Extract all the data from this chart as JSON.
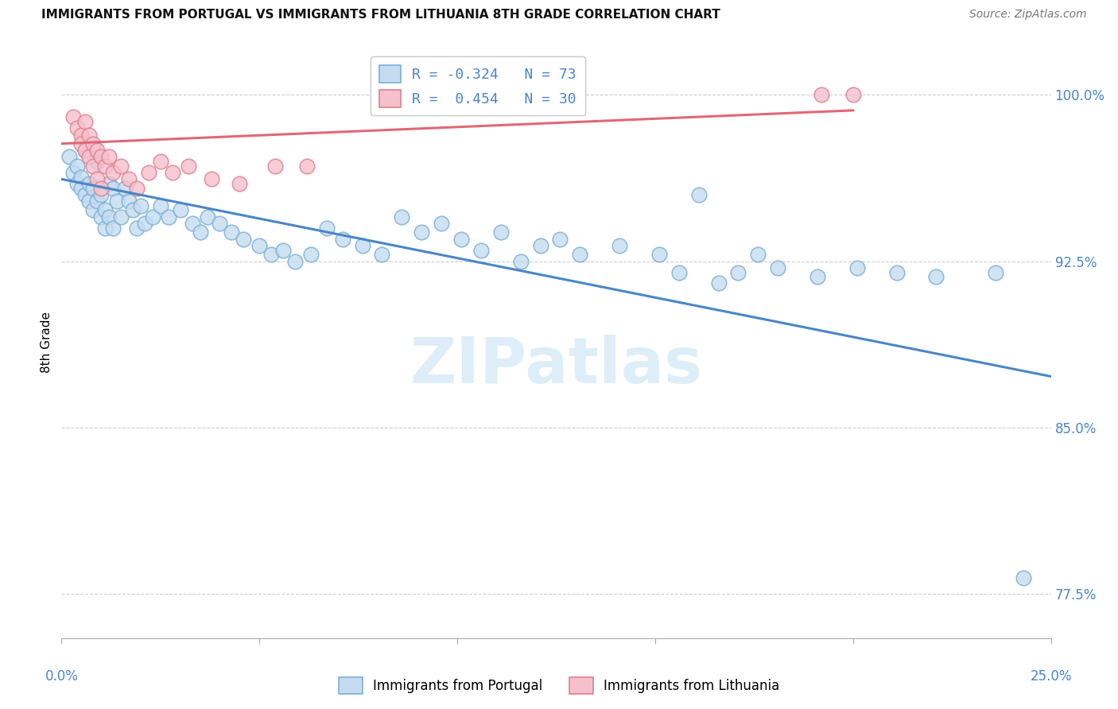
{
  "title": "IMMIGRANTS FROM PORTUGAL VS IMMIGRANTS FROM LITHUANIA 8TH GRADE CORRELATION CHART",
  "source": "Source: ZipAtlas.com",
  "ylabel": "8th Grade",
  "xlim": [
    0.0,
    0.25
  ],
  "ylim": [
    0.755,
    1.022
  ],
  "y_ticks": [
    0.775,
    0.85,
    0.925,
    1.0
  ],
  "y_tick_labels": [
    "77.5%",
    "85.0%",
    "92.5%",
    "100.0%"
  ],
  "x_ticks": [
    0.0,
    0.05,
    0.1,
    0.15,
    0.2,
    0.25
  ],
  "portugal_R": -0.324,
  "portugal_N": 73,
  "lithuania_R": 0.454,
  "lithuania_N": 30,
  "portugal_scatter_color": "#c5dcf0",
  "portugal_scatter_edge": "#7bafd4",
  "portugal_line_color": "#4a86c8",
  "lithuania_scatter_color": "#f5c0cc",
  "lithuania_scatter_edge": "#e08090",
  "lithuania_line_color": "#e06878",
  "watermark_text": "ZIPatlas",
  "watermark_color": "#ddeef8",
  "background_color": "#ffffff",
  "grid_color": "#cccccc",
  "right_axis_color": "#4a86c8",
  "port_x": [
    0.002,
    0.003,
    0.004,
    0.004,
    0.005,
    0.005,
    0.006,
    0.006,
    0.007,
    0.007,
    0.008,
    0.008,
    0.009,
    0.009,
    0.01,
    0.01,
    0.011,
    0.011,
    0.012,
    0.012,
    0.013,
    0.013,
    0.014,
    0.015,
    0.016,
    0.017,
    0.018,
    0.019,
    0.02,
    0.021,
    0.023,
    0.025,
    0.027,
    0.03,
    0.033,
    0.035,
    0.037,
    0.04,
    0.043,
    0.046,
    0.05,
    0.053,
    0.056,
    0.059,
    0.063,
    0.067,
    0.071,
    0.076,
    0.081,
    0.086,
    0.091,
    0.096,
    0.101,
    0.106,
    0.111,
    0.116,
    0.121,
    0.126,
    0.131,
    0.141,
    0.151,
    0.156,
    0.161,
    0.166,
    0.171,
    0.176,
    0.181,
    0.191,
    0.201,
    0.211,
    0.221,
    0.236,
    0.243
  ],
  "port_y": [
    0.972,
    0.965,
    0.96,
    0.968,
    0.963,
    0.958,
    0.975,
    0.955,
    0.96,
    0.952,
    0.958,
    0.948,
    0.97,
    0.952,
    0.955,
    0.945,
    0.948,
    0.94,
    0.96,
    0.945,
    0.958,
    0.94,
    0.952,
    0.945,
    0.958,
    0.952,
    0.948,
    0.94,
    0.95,
    0.942,
    0.945,
    0.95,
    0.945,
    0.948,
    0.942,
    0.938,
    0.945,
    0.942,
    0.938,
    0.935,
    0.932,
    0.928,
    0.93,
    0.925,
    0.928,
    0.94,
    0.935,
    0.932,
    0.928,
    0.945,
    0.938,
    0.942,
    0.935,
    0.93,
    0.938,
    0.925,
    0.932,
    0.935,
    0.928,
    0.932,
    0.928,
    0.92,
    0.955,
    0.915,
    0.92,
    0.928,
    0.922,
    0.918,
    0.922,
    0.92,
    0.918,
    0.92,
    0.782
  ],
  "lith_x": [
    0.003,
    0.004,
    0.005,
    0.005,
    0.006,
    0.006,
    0.007,
    0.007,
    0.008,
    0.008,
    0.009,
    0.009,
    0.01,
    0.01,
    0.011,
    0.012,
    0.013,
    0.015,
    0.017,
    0.019,
    0.022,
    0.025,
    0.028,
    0.032,
    0.038,
    0.045,
    0.054,
    0.062,
    0.192,
    0.2
  ],
  "lith_y": [
    0.99,
    0.985,
    0.982,
    0.978,
    0.988,
    0.975,
    0.982,
    0.972,
    0.978,
    0.968,
    0.975,
    0.962,
    0.972,
    0.958,
    0.968,
    0.972,
    0.965,
    0.968,
    0.962,
    0.958,
    0.965,
    0.97,
    0.965,
    0.968,
    0.962,
    0.96,
    0.968,
    0.968,
    1.0,
    1.0
  ]
}
